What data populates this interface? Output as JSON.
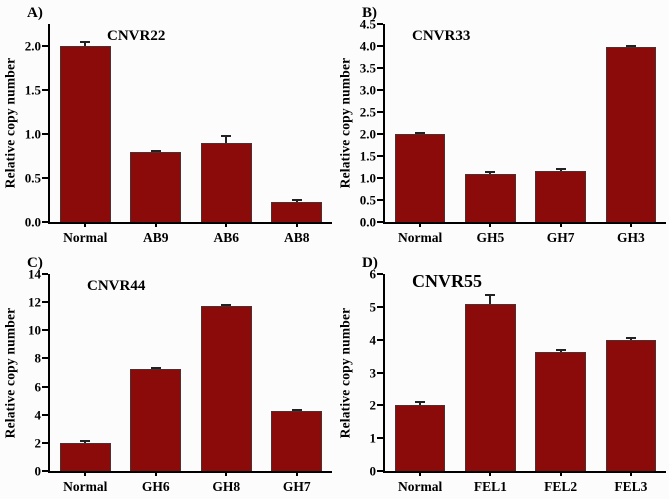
{
  "figure": {
    "background": "#fcfcfc",
    "bar_color": "#8b0a0a",
    "axis_color": "#000000",
    "layout": "2x2-grid"
  },
  "chart_data": [
    {
      "type": "bar",
      "panel_label": "A)",
      "title": "CNVR22",
      "xlabel": "",
      "ylabel": "Relative copy number",
      "categories": [
        "Normal",
        "AB9",
        "AB6",
        "AB8"
      ],
      "values": [
        2.0,
        0.79,
        0.9,
        0.23
      ],
      "errors": [
        0.04,
        0.02,
        0.08,
        0.02
      ],
      "ylim": [
        0,
        2.25
      ],
      "ytick_values": [
        0,
        0.5,
        1,
        1.5,
        2
      ],
      "ytick_labels": [
        "0.0",
        "0.5",
        "1.0",
        "1.5",
        "2.0"
      ],
      "grid": "off",
      "legend": "none"
    },
    {
      "type": "bar",
      "panel_label": "B)",
      "title": "CNVR33",
      "xlabel": "",
      "ylabel": "Relative copy number",
      "categories": [
        "Normal",
        "GH5",
        "GH7",
        "GH3"
      ],
      "values": [
        2.0,
        1.1,
        1.15,
        3.97
      ],
      "errors": [
        0.03,
        0.03,
        0.05,
        0.03
      ],
      "ylim": [
        0,
        4.5
      ],
      "ytick_values": [
        0,
        0.5,
        1,
        1.5,
        2,
        2.5,
        3,
        3.5,
        4,
        4.5
      ],
      "ytick_labels": [
        "0.0",
        "0.5",
        "1.0",
        "1.5",
        "2.0",
        "2.5",
        "3.0",
        "3.5",
        "4.0",
        "4.5"
      ],
      "grid": "off",
      "legend": "none"
    },
    {
      "type": "bar",
      "panel_label": "C)",
      "title": "CNVR44",
      "xlabel": "",
      "ylabel": "Relative copy number",
      "categories": [
        "Normal",
        "GH6",
        "GH8",
        "GH7"
      ],
      "values": [
        2.0,
        7.25,
        11.7,
        4.25
      ],
      "errors": [
        0.12,
        0.06,
        0.08,
        0.08
      ],
      "ylim": [
        0,
        14
      ],
      "ytick_values": [
        0,
        2,
        4,
        6,
        8,
        10,
        12,
        14
      ],
      "ytick_labels": [
        "0",
        "2",
        "4",
        "6",
        "8",
        "10",
        "12",
        "14"
      ],
      "grid": "off",
      "legend": "none"
    },
    {
      "type": "bar",
      "panel_label": "D)",
      "title": "CNVR55",
      "xlabel": "",
      "ylabel": "Relative copy number",
      "categories": [
        "Normal",
        "FEL1",
        "FEL2",
        "FEL3"
      ],
      "values": [
        2.0,
        5.08,
        3.62,
        4.0
      ],
      "errors": [
        0.1,
        0.28,
        0.06,
        0.05
      ],
      "ylim": [
        0,
        6
      ],
      "ytick_values": [
        0,
        1,
        2,
        3,
        4,
        5,
        6
      ],
      "ytick_labels": [
        "0",
        "1",
        "2",
        "3",
        "4",
        "5",
        "6"
      ],
      "grid": "off",
      "legend": "none"
    }
  ]
}
